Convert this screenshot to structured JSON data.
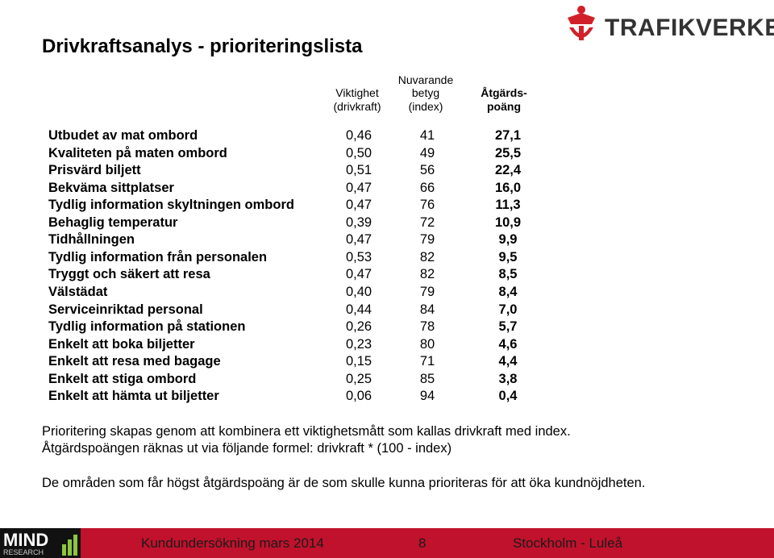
{
  "header": {
    "title": "Drivkraftsanalys - prioriteringslista"
  },
  "logo": {
    "text": "TRAFIKVERKET"
  },
  "table": {
    "columns": [
      [
        "Viktighet",
        "(drivkraft)"
      ],
      [
        "Nuvarande",
        "betyg",
        "(index)"
      ],
      [
        "Åtgärds-",
        "poäng"
      ]
    ],
    "rows": [
      [
        "Utbudet av mat ombord",
        "0,46",
        "41",
        "27,1"
      ],
      [
        "Kvaliteten på maten ombord",
        "0,50",
        "49",
        "25,5"
      ],
      [
        "Prisvärd biljett",
        "0,51",
        "56",
        "22,4"
      ],
      [
        "Bekväma sittplatser",
        "0,47",
        "66",
        "16,0"
      ],
      [
        "Tydlig information skyltningen ombord",
        "0,47",
        "76",
        "11,3"
      ],
      [
        "Behaglig temperatur",
        "0,39",
        "72",
        "10,9"
      ],
      [
        "Tidhållningen",
        "0,47",
        "79",
        "9,9"
      ],
      [
        "Tydlig information från personalen",
        "0,53",
        "82",
        "9,5"
      ],
      [
        "Tryggt och säkert att resa",
        "0,47",
        "82",
        "8,5"
      ],
      [
        "Välstädat",
        "0,40",
        "79",
        "8,4"
      ],
      [
        "Serviceinriktad personal",
        "0,44",
        "84",
        "7,0"
      ],
      [
        "Tydlig information på stationen",
        "0,26",
        "78",
        "5,7"
      ],
      [
        "Enkelt att boka biljetter",
        "0,23",
        "80",
        "4,6"
      ],
      [
        "Enkelt att resa med bagage",
        "0,15",
        "71",
        "4,4"
      ],
      [
        "Enkelt att stiga ombord",
        "0,25",
        "85",
        "3,8"
      ],
      [
        "Enkelt att hämta ut biljetter",
        "0,06",
        "94",
        "0,4"
      ]
    ]
  },
  "notes": [
    "Prioritering skapas genom att kombinera ett viktighetsmått som kallas drivkraft med index.",
    "Åtgärdspoängen räknas ut via följande formel: drivkraft * (100 - index)",
    "De områden som får högst åtgärdspoäng är de som skulle kunna prioriteras för att öka kundnöjdheten."
  ],
  "footer": {
    "left": "Kundundersökning mars 2014",
    "page": "8",
    "right": "Stockholm - Luleå"
  },
  "footer_logo": {
    "name": "MIND",
    "sub": "RESEARCH"
  }
}
